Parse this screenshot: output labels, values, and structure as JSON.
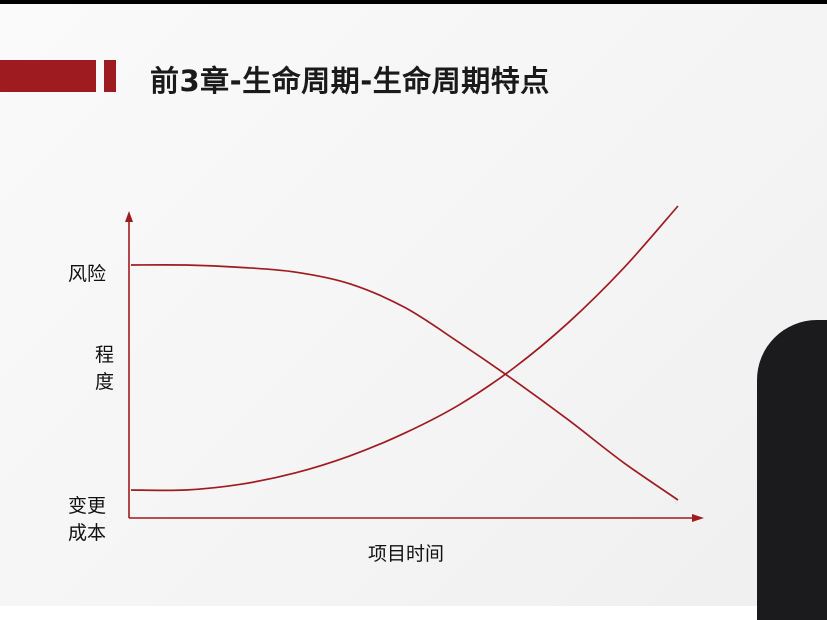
{
  "slide": {
    "title": "前3章-生命周期-生命周期特点"
  },
  "chart_data": {
    "type": "line",
    "xlabel": "项目时间",
    "ylabel_top": "风险",
    "ylabel_middle": [
      "程",
      "度"
    ],
    "ylabel_bottom": [
      "变更",
      "成本"
    ],
    "x": [
      0,
      0.1,
      0.2,
      0.3,
      0.4,
      0.5,
      0.6,
      0.7,
      0.8,
      0.9,
      1.0
    ],
    "series": [
      {
        "name": "风险",
        "values": [
          1.0,
          1.0,
          0.99,
          0.97,
          0.92,
          0.82,
          0.67,
          0.51,
          0.34,
          0.16,
          0.0
        ],
        "color": "#9e1b20"
      },
      {
        "name": "变更成本",
        "values": [
          0.0,
          0.0,
          0.02,
          0.06,
          0.12,
          0.2,
          0.3,
          0.43,
          0.59,
          0.78,
          1.0
        ],
        "color": "#9e1b20"
      }
    ],
    "ylim": [
      0,
      1
    ],
    "xlim": [
      0,
      1
    ],
    "grid": false,
    "axis_color": "#9e1b20"
  }
}
